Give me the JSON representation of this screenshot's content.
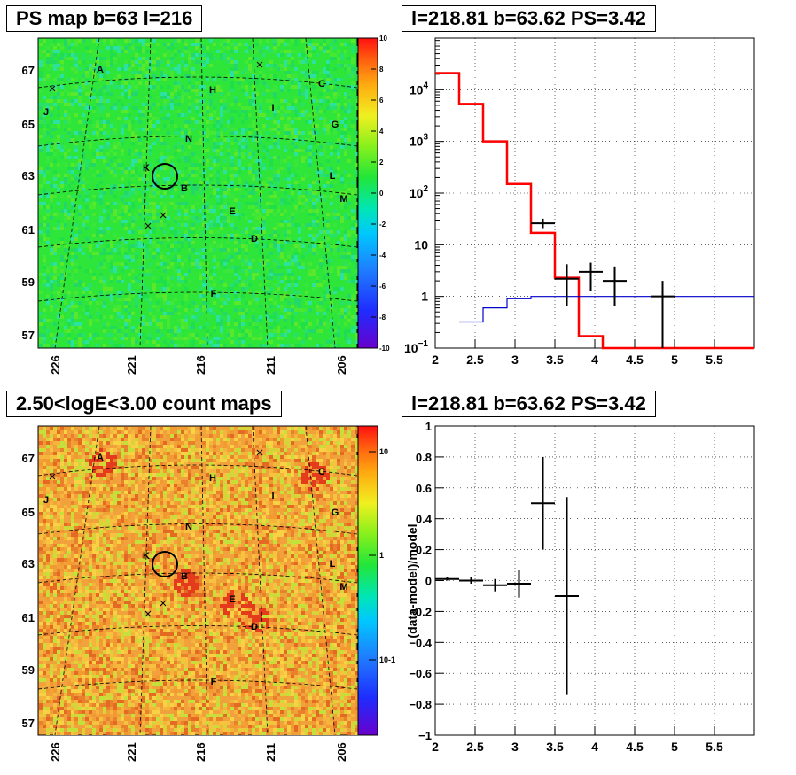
{
  "titles": {
    "map_top": "PS map b=63 l=216",
    "spec_top": "l=218.81 b=63.62 PS=3.42",
    "map_bottom": "2.50<logE<3.00 count maps",
    "spec_bottom": "l=218.81 b=63.62 PS=3.42"
  },
  "colors": {
    "data": "#000000",
    "model": "#ff0000",
    "background_model": "#0000cc",
    "grid": "#000000"
  },
  "chart_data": [
    {
      "id": "ps-map",
      "type": "heatmap",
      "title": "PS map b=63 l=216",
      "x_ticks": [
        "226",
        "221",
        "216",
        "211",
        "206"
      ],
      "y_ticks": [
        "67",
        "65",
        "63",
        "61",
        "59",
        "57"
      ],
      "colorbar": {
        "range": [
          -10,
          10
        ],
        "ticks": [
          "10",
          "8",
          "6",
          "4",
          "2",
          "0",
          "-2",
          "-4",
          "-6",
          "-8",
          "-10"
        ],
        "scale": "linear"
      },
      "source_labels": [
        "A",
        "B",
        "C",
        "D",
        "E",
        "F",
        "G",
        "H",
        "I",
        "J",
        "K",
        "L",
        "M",
        "N"
      ],
      "marker": {
        "type": "circle",
        "l": 218.81,
        "b": 63.62
      }
    },
    {
      "id": "count-map",
      "type": "heatmap",
      "title": "2.50<logE<3.00 count maps",
      "x_ticks": [
        "226",
        "221",
        "216",
        "211",
        "206"
      ],
      "y_ticks": [
        "67",
        "65",
        "63",
        "61",
        "59",
        "57"
      ],
      "colorbar": {
        "ticks": [
          "10",
          "1",
          "10-1"
        ],
        "scale": "log"
      },
      "source_labels": [
        "A",
        "B",
        "C",
        "D",
        "E",
        "F",
        "G",
        "H",
        "I",
        "J",
        "K",
        "L",
        "M",
        "N"
      ],
      "marker": {
        "type": "circle",
        "l": 218.81,
        "b": 63.62
      }
    },
    {
      "id": "spectrum",
      "type": "line",
      "title": "l=218.81 b=63.62 PS=3.42",
      "xlim": [
        2,
        6
      ],
      "ylim": [
        0.1,
        100000
      ],
      "yscale": "log",
      "grid": true,
      "x_ticks": [
        "2",
        "2.5",
        "3",
        "3.5",
        "4",
        "4.5",
        "5",
        "5.5"
      ],
      "y_ticks": [
        {
          "value": 0.1,
          "base": "10",
          "exp": "−1"
        },
        {
          "value": 1,
          "base": "1",
          "exp": ""
        },
        {
          "value": 10,
          "base": "10",
          "exp": ""
        },
        {
          "value": 100,
          "base": "10",
          "exp": "2"
        },
        {
          "value": 1000,
          "base": "10",
          "exp": "3"
        },
        {
          "value": 10000,
          "base": "10",
          "exp": "4"
        }
      ],
      "series": [
        {
          "style": "step",
          "color": "#000000",
          "edges": [
            2,
            2.3,
            2.6,
            2.9,
            3.2,
            3.5,
            3.8,
            4.1,
            4.4,
            5,
            6
          ],
          "values": [
            21000,
            5300,
            1000,
            150,
            17,
            2.2,
            0.17,
            0.1,
            0.1,
            0.1
          ]
        },
        {
          "style": "step",
          "color": "#ff0000",
          "edges": [
            2,
            2.3,
            2.6,
            2.9,
            3.2,
            3.5,
            3.8,
            4.1,
            4.4,
            5,
            6
          ],
          "values": [
            21000,
            5300,
            1000,
            150,
            17,
            2.3,
            0.17,
            0.1,
            0.1,
            0.1
          ]
        },
        {
          "style": "step",
          "color": "#0000cc",
          "edges": [
            2.3,
            2.6,
            2.9,
            3.2,
            3.5,
            3.8,
            6
          ],
          "values": [
            0.32,
            0.6,
            0.9,
            1.0,
            1.0,
            1.0
          ]
        },
        {
          "style": "errorbars",
          "color": "#000000",
          "points": [
            {
              "x": 3.35,
              "xerr": 0.15,
              "y": 26,
              "ylo": 21,
              "yhi": 32
            },
            {
              "x": 3.65,
              "xerr": 0.15,
              "y": 2.2,
              "ylo": 0.65,
              "yhi": 4.2
            },
            {
              "x": 3.95,
              "xerr": 0.15,
              "y": 3,
              "ylo": 1.3,
              "yhi": 4.5
            },
            {
              "x": 4.25,
              "xerr": 0.15,
              "y": 2,
              "ylo": 0.65,
              "yhi": 3.8
            },
            {
              "x": 4.85,
              "xerr": 0.15,
              "y": 1,
              "ylo": 0.1,
              "yhi": 2.0
            }
          ]
        }
      ]
    },
    {
      "id": "residuals",
      "type": "scatter",
      "title": "l=218.81 b=63.62 PS=3.42",
      "ylabel": "(data-model)/model",
      "xlim": [
        2,
        6
      ],
      "ylim": [
        -1,
        1
      ],
      "grid": true,
      "x_ticks": [
        "2",
        "2.5",
        "3",
        "3.5",
        "4",
        "4.5",
        "5",
        "5.5"
      ],
      "y_ticks": [
        "−1",
        "−0.8",
        "−0.6",
        "−0.4",
        "−0.2",
        "0",
        "0.2",
        "0.4",
        "0.6",
        "0.8",
        "1"
      ],
      "points": [
        {
          "x": 2.15,
          "xerr": 0.15,
          "y": 0.01,
          "yerr": 0.01
        },
        {
          "x": 2.45,
          "xerr": 0.15,
          "y": 0.0,
          "yerr": 0.02
        },
        {
          "x": 2.75,
          "xerr": 0.15,
          "y": -0.03,
          "yerr": 0.04
        },
        {
          "x": 3.05,
          "xerr": 0.15,
          "y": -0.02,
          "yerr": 0.09
        },
        {
          "x": 3.35,
          "xerr": 0.15,
          "y": 0.5,
          "yerr": 0.3
        },
        {
          "x": 3.65,
          "xerr": 0.15,
          "y": -0.1,
          "yerr": 0.64
        }
      ]
    }
  ]
}
